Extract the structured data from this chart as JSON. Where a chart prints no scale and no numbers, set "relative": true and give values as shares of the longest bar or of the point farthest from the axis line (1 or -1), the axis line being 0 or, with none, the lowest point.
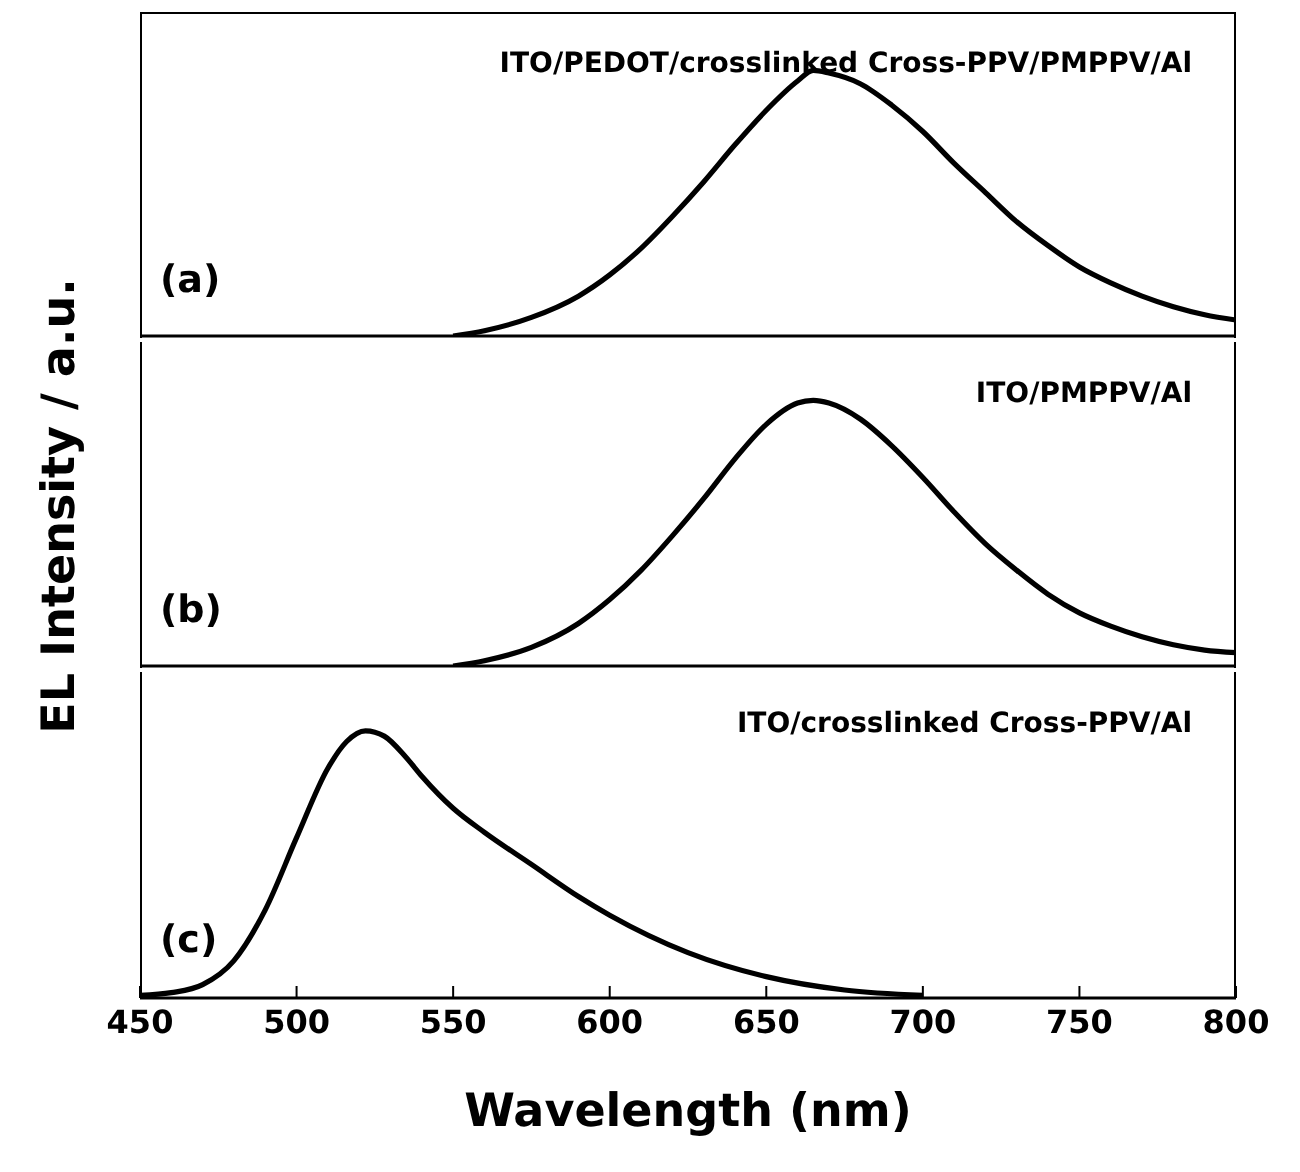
{
  "chart_data": [
    {
      "type": "line",
      "relative": true,
      "x": [
        550,
        560,
        575,
        590,
        600,
        610,
        620,
        630,
        640,
        650,
        660,
        665,
        670,
        680,
        690,
        700,
        710,
        720,
        730,
        740,
        750,
        760,
        770,
        780,
        790,
        800
      ],
      "series": [
        {
          "color": "#000000",
          "values": [
            0,
            0.02,
            0.07,
            0.15,
            0.23,
            0.33,
            0.45,
            0.58,
            0.72,
            0.85,
            0.96,
            1,
            0.99,
            0.95,
            0.87,
            0.77,
            0.65,
            0.54,
            0.43,
            0.34,
            0.26,
            0.2,
            0.15,
            0.11,
            0.08,
            0.06
          ]
        }
      ],
      "xlim": [
        450,
        800
      ],
      "xticks": [
        450,
        500,
        550,
        600,
        650,
        700,
        750,
        800
      ],
      "tick_labels": false,
      "annotations": [
        "ITO/PEDOT/crosslinked Cross-PPV/PMPPV/Al",
        "(a)"
      ]
    },
    {
      "type": "line",
      "relative": true,
      "ylabel": "EL Intensity / a.u.",
      "x": [
        550,
        560,
        575,
        590,
        600,
        610,
        620,
        630,
        640,
        650,
        660,
        665,
        670,
        680,
        690,
        700,
        710,
        720,
        730,
        740,
        750,
        760,
        770,
        780,
        790,
        800
      ],
      "series": [
        {
          "color": "#000000",
          "values": [
            0,
            0.02,
            0.07,
            0.16,
            0.25,
            0.36,
            0.49,
            0.63,
            0.78,
            0.91,
            0.99,
            1,
            0.99,
            0.93,
            0.83,
            0.71,
            0.58,
            0.46,
            0.36,
            0.27,
            0.2,
            0.15,
            0.11,
            0.08,
            0.06,
            0.05
          ]
        }
      ],
      "xlim": [
        450,
        800
      ],
      "xticks": [
        450,
        500,
        550,
        600,
        650,
        700,
        750,
        800
      ],
      "tick_labels": false,
      "annotations": [
        "ITO/PMPPV/Al",
        "(b)"
      ]
    },
    {
      "type": "line",
      "relative": true,
      "xlabel": "Wavelength (nm)",
      "x": [
        450,
        460,
        470,
        480,
        490,
        500,
        510,
        516,
        522,
        528,
        535,
        540,
        550,
        560,
        575,
        590,
        600,
        625,
        650,
        675,
        700
      ],
      "series": [
        {
          "color": "#000000",
          "values": [
            0.01,
            0.02,
            0.05,
            0.14,
            0.33,
            0.6,
            0.86,
            0.96,
            1,
            0.98,
            0.9,
            0.83,
            0.71,
            0.62,
            0.5,
            0.38,
            0.31,
            0.17,
            0.08,
            0.03,
            0.01
          ]
        }
      ],
      "xlim": [
        450,
        800
      ],
      "xticks": [
        450,
        500,
        550,
        600,
        650,
        700,
        750,
        800
      ],
      "tick_labels": "x",
      "annotations": [
        "ITO/crosslinked Cross-PPV/Al",
        "(c)"
      ]
    }
  ]
}
